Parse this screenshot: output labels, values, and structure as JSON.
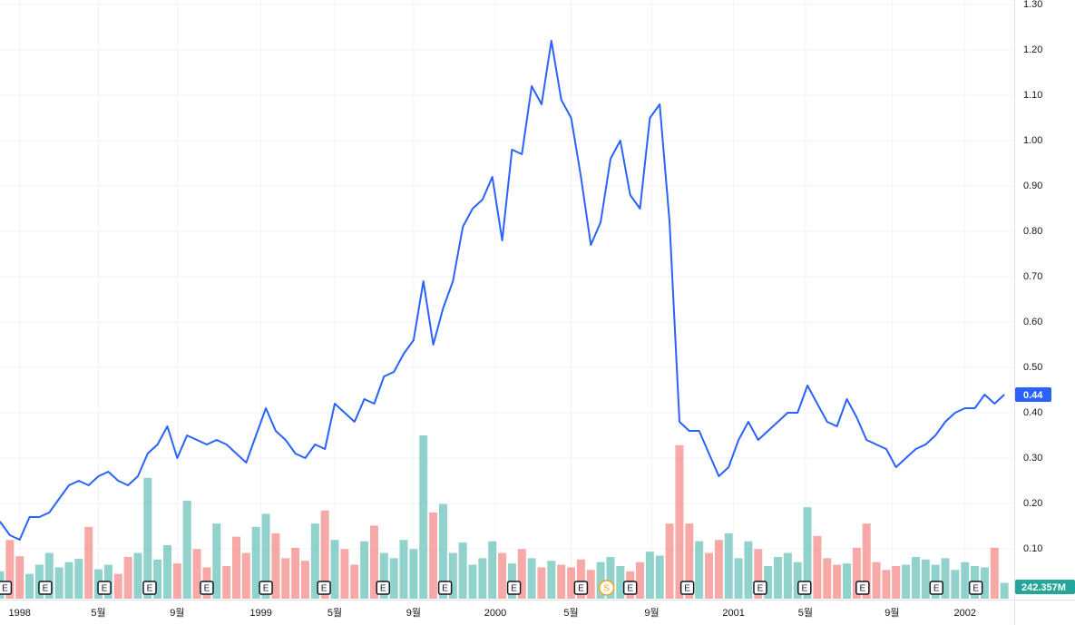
{
  "chart_data": {
    "type": "line",
    "x": [
      0,
      1,
      2,
      3,
      4,
      5,
      6,
      7,
      8,
      9,
      10,
      11,
      12,
      13,
      14,
      15,
      16,
      17,
      18,
      19,
      20,
      21,
      22,
      23,
      24,
      25,
      26,
      27,
      28,
      29,
      30,
      31,
      32,
      33,
      34,
      35,
      36,
      37,
      38,
      39,
      40,
      41,
      42,
      43,
      44,
      45,
      46,
      47,
      48,
      49,
      50,
      51,
      52,
      53,
      54,
      55,
      56,
      57,
      58,
      59,
      60,
      61,
      62,
      63,
      64,
      65,
      66,
      67,
      68,
      69,
      70,
      71,
      72,
      73,
      74,
      75,
      76,
      77,
      78,
      79,
      80,
      81,
      82,
      83,
      84,
      85,
      86,
      87,
      88,
      89,
      90,
      91,
      92,
      93,
      94,
      95,
      96,
      97,
      98,
      99,
      100,
      101,
      102
    ],
    "series": [
      {
        "name": "price",
        "color": "#2962ff",
        "values": [
          0.16,
          0.13,
          0.12,
          0.17,
          0.17,
          0.18,
          0.21,
          0.24,
          0.25,
          0.24,
          0.26,
          0.27,
          0.25,
          0.24,
          0.26,
          0.31,
          0.33,
          0.37,
          0.3,
          0.35,
          0.34,
          0.33,
          0.34,
          0.33,
          0.31,
          0.29,
          0.35,
          0.41,
          0.36,
          0.34,
          0.31,
          0.3,
          0.33,
          0.32,
          0.42,
          0.4,
          0.38,
          0.43,
          0.42,
          0.48,
          0.49,
          0.53,
          0.56,
          0.69,
          0.55,
          0.63,
          0.69,
          0.81,
          0.85,
          0.87,
          0.92,
          0.78,
          0.98,
          0.97,
          1.12,
          1.08,
          1.22,
          1.09,
          1.05,
          0.92,
          0.77,
          0.82,
          0.96,
          1.0,
          0.88,
          0.85,
          1.05,
          1.08,
          0.82,
          0.38,
          0.36,
          0.36,
          0.31,
          0.26,
          0.28,
          0.34,
          0.38,
          0.34,
          0.36,
          0.38,
          0.4,
          0.4,
          0.46,
          0.42,
          0.38,
          0.37,
          0.43,
          0.39,
          0.34,
          0.33,
          0.32,
          0.28,
          0.3,
          0.32,
          0.33,
          0.35,
          0.38,
          0.4,
          0.41,
          0.41,
          0.44,
          0.42,
          0.44
        ]
      },
      {
        "name": "volume",
        "up_color": "rgba(38,166,154,0.5)",
        "down_color": "rgba(239,83,80,0.5)",
        "values": [
          420,
          900,
          650,
          380,
          520,
          700,
          480,
          560,
          610,
          1100,
          450,
          520,
          380,
          640,
          700,
          1850,
          600,
          820,
          540,
          1500,
          760,
          480,
          1150,
          500,
          950,
          700,
          1100,
          1300,
          1000,
          620,
          780,
          580,
          1150,
          1350,
          900,
          760,
          520,
          880,
          1120,
          700,
          620,
          900,
          760,
          2500,
          1320,
          1450,
          700,
          860,
          520,
          620,
          880,
          700,
          540,
          760,
          620,
          480,
          580,
          520,
          480,
          600,
          440,
          560,
          640,
          500,
          420,
          560,
          720,
          660,
          1150,
          2350,
          1150,
          880,
          700,
          900,
          1000,
          620,
          880,
          760,
          500,
          640,
          700,
          560,
          1400,
          960,
          620,
          520,
          540,
          780,
          1150,
          560,
          440,
          500,
          520,
          640,
          600,
          520,
          620,
          440,
          560,
          500,
          480,
          780,
          242.357
        ]
      }
    ],
    "volume_label": "242.357M",
    "xlim": [
      0,
      103
    ],
    "xticks": [
      {
        "value": 2,
        "label": "1998"
      },
      {
        "value": 10,
        "label": "5월"
      },
      {
        "value": 18,
        "label": "9월"
      },
      {
        "value": 26.5,
        "label": "1999"
      },
      {
        "value": 34,
        "label": "5월"
      },
      {
        "value": 42,
        "label": "9월"
      },
      {
        "value": 50.3,
        "label": "2000"
      },
      {
        "value": 58,
        "label": "5월"
      },
      {
        "value": 66.2,
        "label": "9월"
      },
      {
        "value": 74.5,
        "label": "2001"
      },
      {
        "value": 81.8,
        "label": "5월"
      },
      {
        "value": 90.6,
        "label": "9월"
      },
      {
        "value": 98,
        "label": "2002"
      }
    ],
    "ylim": [
      0,
      1.31
    ],
    "yticks": [
      {
        "value": 0.1,
        "label": "0.10"
      },
      {
        "value": 0.2,
        "label": "0.20"
      },
      {
        "value": 0.3,
        "label": "0.30"
      },
      {
        "value": 0.4,
        "label": "0.40"
      },
      {
        "value": 0.5,
        "label": "0.50"
      },
      {
        "value": 0.6,
        "label": "0.60"
      },
      {
        "value": 0.7,
        "label": "0.70"
      },
      {
        "value": 0.8,
        "label": "0.80"
      },
      {
        "value": 0.9,
        "label": "0.90"
      },
      {
        "value": 1.0,
        "label": "1.00"
      },
      {
        "value": 1.1,
        "label": "1.10"
      },
      {
        "value": 1.2,
        "label": "1.20"
      },
      {
        "value": 1.3,
        "label": "1.30"
      }
    ],
    "vlim": [
      0,
      2500
    ],
    "grid": true,
    "events": [
      {
        "x": 0.5,
        "label": "E"
      },
      {
        "x": 4.6,
        "label": "E"
      },
      {
        "x": 10.6,
        "label": "E"
      },
      {
        "x": 15.2,
        "label": "E"
      },
      {
        "x": 21,
        "label": "E"
      },
      {
        "x": 27,
        "label": "E"
      },
      {
        "x": 32.9,
        "label": "E"
      },
      {
        "x": 38.9,
        "label": "E"
      },
      {
        "x": 45.2,
        "label": "E"
      },
      {
        "x": 52.2,
        "label": "E"
      },
      {
        "x": 59,
        "label": "E"
      },
      {
        "x": 61.6,
        "label": "S"
      },
      {
        "x": 64,
        "label": "E"
      },
      {
        "x": 69.8,
        "label": "E"
      },
      {
        "x": 77.2,
        "label": "E"
      },
      {
        "x": 81.7,
        "label": "E"
      },
      {
        "x": 87.6,
        "label": "E"
      },
      {
        "x": 95.1,
        "label": "E"
      },
      {
        "x": 99.1,
        "label": "E"
      }
    ]
  }
}
